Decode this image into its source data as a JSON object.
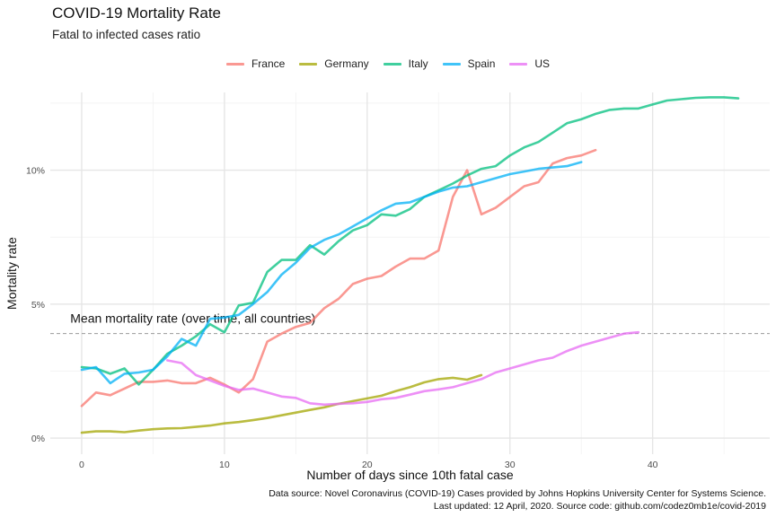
{
  "title": "COVID-19 Mortality Rate",
  "subtitle": "Fatal to infected cases ratio",
  "caption_line1": "Data source: Novel Coronavirus (COVID-19) Cases provided by Johns Hopkins University Center for Systems Science.",
  "caption_line2": "Last updated: 12 April, 2020. Source code: github.com/codez0mb1e/covid-2019",
  "chart_data": {
    "type": "line",
    "title": "COVID-19 Mortality Rate",
    "subtitle": "Fatal to infected cases ratio",
    "xlabel": "Number of days since 10th fatal case",
    "ylabel": "Mortality rate",
    "xlim": [
      -2.2,
      48.2
    ],
    "ylim": [
      -0.6,
      12.9
    ],
    "x_ticks": [
      0,
      10,
      20,
      30,
      40
    ],
    "y_ticks": [
      0,
      5,
      10
    ],
    "y_tick_labels": [
      "0%",
      "5%",
      "10%"
    ],
    "grid": true,
    "legend_position": "top",
    "reference_line": {
      "y": 3.9,
      "label": "Mean mortality rate (over time, all countries)",
      "label_x": -0.8,
      "label_y": 4.3
    },
    "series": [
      {
        "name": "France",
        "color": "#F8766D",
        "x": [
          0,
          1,
          2,
          3,
          4,
          5,
          6,
          7,
          8,
          9,
          10,
          11,
          12,
          13,
          14,
          15,
          16,
          17,
          18,
          19,
          20,
          21,
          22,
          23,
          24,
          25,
          26,
          27,
          28,
          29,
          30,
          31,
          32,
          33,
          34,
          35,
          36
        ],
        "y": [
          1.2,
          1.7,
          1.6,
          1.85,
          2.1,
          2.1,
          2.15,
          2.05,
          2.05,
          2.25,
          2.0,
          1.7,
          2.2,
          3.6,
          3.9,
          4.15,
          4.3,
          4.85,
          5.2,
          5.75,
          5.95,
          6.05,
          6.4,
          6.7,
          6.7,
          7.0,
          9.0,
          10.0,
          8.35,
          8.6,
          9.0,
          9.4,
          9.55,
          10.25,
          10.45,
          10.55,
          10.75
        ]
      },
      {
        "name": "Germany",
        "color": "#A3A500",
        "x": [
          0,
          1,
          2,
          3,
          4,
          5,
          6,
          7,
          8,
          9,
          10,
          11,
          12,
          13,
          14,
          15,
          16,
          17,
          18,
          19,
          20,
          21,
          22,
          23,
          24,
          25,
          26,
          27,
          28
        ],
        "y": [
          0.2,
          0.25,
          0.25,
          0.22,
          0.28,
          0.33,
          0.36,
          0.37,
          0.42,
          0.47,
          0.55,
          0.6,
          0.67,
          0.75,
          0.85,
          0.95,
          1.05,
          1.15,
          1.28,
          1.38,
          1.48,
          1.58,
          1.75,
          1.9,
          2.08,
          2.2,
          2.25,
          2.18,
          2.35
        ]
      },
      {
        "name": "Italy",
        "color": "#00BF7D",
        "x": [
          0,
          1,
          2,
          3,
          4,
          5,
          6,
          7,
          8,
          9,
          10,
          11,
          12,
          13,
          14,
          15,
          16,
          17,
          18,
          19,
          20,
          21,
          22,
          23,
          24,
          25,
          26,
          27,
          28,
          29,
          30,
          31,
          32,
          33,
          34,
          35,
          36,
          37,
          38,
          39,
          40,
          41,
          42,
          43,
          44,
          45,
          46
        ],
        "y": [
          2.65,
          2.6,
          2.4,
          2.6,
          2.0,
          2.55,
          3.15,
          3.45,
          3.8,
          4.25,
          3.95,
          4.95,
          5.05,
          6.2,
          6.65,
          6.65,
          7.2,
          6.85,
          7.35,
          7.75,
          7.95,
          8.35,
          8.3,
          8.55,
          9.0,
          9.25,
          9.5,
          9.8,
          10.05,
          10.15,
          10.55,
          10.85,
          11.05,
          11.4,
          11.75,
          11.9,
          12.1,
          12.25,
          12.3,
          12.3,
          12.45,
          12.6,
          12.65,
          12.7,
          12.72,
          12.72,
          12.68
        ]
      },
      {
        "name": "Spain",
        "color": "#00B0F6",
        "x": [
          0,
          1,
          2,
          3,
          4,
          5,
          6,
          7,
          8,
          9,
          10,
          11,
          12,
          13,
          14,
          15,
          16,
          17,
          18,
          19,
          20,
          21,
          22,
          23,
          24,
          25,
          26,
          27,
          28,
          29,
          30,
          31,
          32,
          33,
          34,
          35
        ],
        "y": [
          2.55,
          2.65,
          2.05,
          2.4,
          2.45,
          2.55,
          3.05,
          3.7,
          3.45,
          4.45,
          4.5,
          4.6,
          5.0,
          5.45,
          6.1,
          6.55,
          7.1,
          7.4,
          7.6,
          7.9,
          8.2,
          8.5,
          8.75,
          8.8,
          9.0,
          9.2,
          9.35,
          9.4,
          9.55,
          9.7,
          9.85,
          9.95,
          10.05,
          10.1,
          10.15,
          10.3
        ]
      },
      {
        "name": "US",
        "color": "#E76BF3",
        "x": [
          6,
          7,
          8,
          9,
          10,
          11,
          12,
          13,
          14,
          15,
          16,
          17,
          18,
          19,
          20,
          21,
          22,
          23,
          24,
          25,
          26,
          27,
          28,
          29,
          30,
          31,
          32,
          33,
          34,
          35,
          36,
          37,
          38,
          39
        ],
        "y": [
          2.9,
          2.8,
          2.35,
          2.15,
          1.95,
          1.8,
          1.85,
          1.7,
          1.55,
          1.5,
          1.3,
          1.25,
          1.28,
          1.3,
          1.35,
          1.45,
          1.5,
          1.62,
          1.75,
          1.82,
          1.9,
          2.05,
          2.2,
          2.45,
          2.6,
          2.75,
          2.9,
          3.0,
          3.25,
          3.45,
          3.6,
          3.75,
          3.9,
          3.95
        ]
      }
    ]
  }
}
